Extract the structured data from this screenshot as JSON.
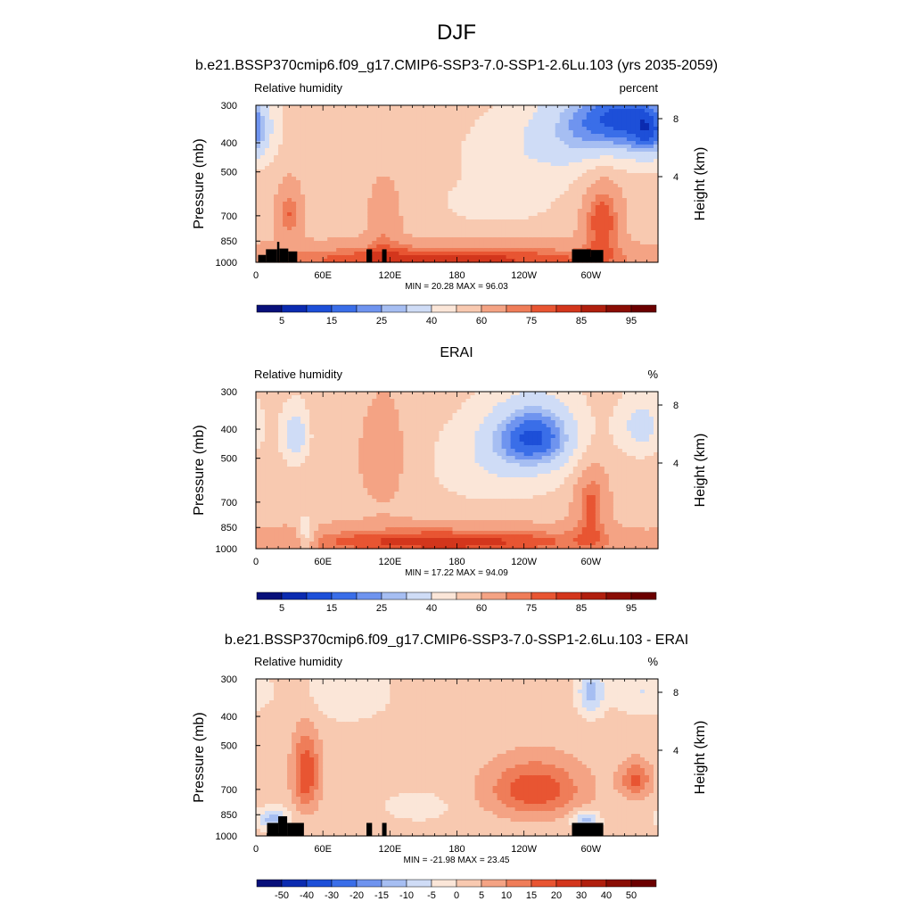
{
  "page": {
    "title": "DJF"
  },
  "chart_data": [
    {
      "type": "heatmap",
      "title": "b.e21.BSSP370cmip6.f09_g17.CMIP6-SSP3-7.0-SSP1-2.6Lu.103 (yrs 2035-2059)",
      "left_label": "Relative humidity",
      "right_label": "percent",
      "ylabel": "Pressure (mb)",
      "y2label": "Height (km)",
      "xticks": [
        "0",
        "60E",
        "120E",
        "180",
        "120W",
        "60W"
      ],
      "yticks": [
        "300",
        "400",
        "500",
        "700",
        "850",
        "1000"
      ],
      "y2ticks": [
        "8",
        "4"
      ],
      "ylim": [
        1000,
        300
      ],
      "xlim": [
        0,
        360
      ],
      "stats": "MIN =  20.28  MAX =  96.03",
      "colorbar": {
        "levels": [
          5,
          10,
          15,
          20,
          25,
          30,
          40,
          50,
          60,
          70,
          75,
          80,
          85,
          90,
          95
        ],
        "labels": [
          "5",
          "15",
          "25",
          "40",
          "60",
          "75",
          "85",
          "95"
        ]
      },
      "colors": [
        "#08107a",
        "#0b2bb0",
        "#1d4fd8",
        "#3a6ee8",
        "#6f94ef",
        "#a6bef2",
        "#cfdcf6",
        "#fbe6d8",
        "#f8c9b0",
        "#f4a384",
        "#ef7d59",
        "#e85532",
        "#d3361c",
        "#b01f0e",
        "#8a0d04",
        "#6b0000"
      ],
      "base_value": 55,
      "blobs": [
        {
          "lon": 330,
          "p": 330,
          "dlon": 38,
          "dp": 110,
          "amp": -30
        },
        {
          "lon": 290,
          "p": 340,
          "dlon": 45,
          "dp": 120,
          "amp": -18
        },
        {
          "lon": 250,
          "p": 430,
          "dlon": 70,
          "dp": 150,
          "amp": -12
        },
        {
          "lon": 215,
          "p": 640,
          "dlon": 45,
          "dp": 95,
          "amp": -12
        },
        {
          "lon": 355,
          "p": 370,
          "dlon": 18,
          "dp": 90,
          "amp": -22
        },
        {
          "lon": 170,
          "p": 980,
          "dlon": 190,
          "dp": 120,
          "amp": 28
        },
        {
          "lon": 30,
          "p": 690,
          "dlon": 12,
          "dp": 160,
          "amp": 20
        },
        {
          "lon": 115,
          "p": 720,
          "dlon": 15,
          "dp": 210,
          "amp": 14
        },
        {
          "lon": 310,
          "p": 720,
          "dlon": 18,
          "dp": 220,
          "amp": 25
        }
      ],
      "topography": [
        {
          "lon0": 2,
          "lon1": 9,
          "p": 945
        },
        {
          "lon0": 9,
          "lon1": 19,
          "p": 905
        },
        {
          "lon0": 19,
          "lon1": 21,
          "p": 855
        },
        {
          "lon0": 21,
          "lon1": 29,
          "p": 900
        },
        {
          "lon0": 29,
          "lon1": 37,
          "p": 920
        },
        {
          "lon0": 99,
          "lon1": 104,
          "p": 905
        },
        {
          "lon0": 113,
          "lon1": 117,
          "p": 905
        },
        {
          "lon0": 283,
          "lon1": 300,
          "p": 905
        },
        {
          "lon0": 300,
          "lon1": 311,
          "p": 910
        }
      ]
    },
    {
      "type": "heatmap",
      "title": "ERAI",
      "left_label": "Relative humidity",
      "right_label": "%",
      "ylabel": "Pressure (mb)",
      "y2label": "Height (km)",
      "xticks": [
        "0",
        "60E",
        "120E",
        "180",
        "120W",
        "60W"
      ],
      "yticks": [
        "300",
        "400",
        "500",
        "700",
        "850",
        "1000"
      ],
      "y2ticks": [
        "8",
        "4"
      ],
      "ylim": [
        1000,
        300
      ],
      "xlim": [
        0,
        360
      ],
      "stats": "MIN =  17.22  MAX =  94.09",
      "colorbar": {
        "levels": [
          5,
          10,
          15,
          20,
          25,
          30,
          40,
          50,
          60,
          70,
          75,
          80,
          85,
          90,
          95
        ],
        "labels": [
          "5",
          "15",
          "25",
          "40",
          "60",
          "75",
          "85",
          "95"
        ]
      },
      "colors": [
        "#08107a",
        "#0b2bb0",
        "#1d4fd8",
        "#3a6ee8",
        "#6f94ef",
        "#a6bef2",
        "#cfdcf6",
        "#fbe6d8",
        "#f8c9b0",
        "#f4a384",
        "#ef7d59",
        "#e85532",
        "#d3361c",
        "#b01f0e",
        "#8a0d04",
        "#6b0000"
      ],
      "base_value": 55,
      "blobs": [
        {
          "lon": 250,
          "p": 420,
          "dlon": 42,
          "dp": 120,
          "amp": -35
        },
        {
          "lon": 215,
          "p": 520,
          "dlon": 65,
          "dp": 180,
          "amp": -12
        },
        {
          "lon": 35,
          "p": 420,
          "dlon": 12,
          "dp": 90,
          "amp": -24
        },
        {
          "lon": 345,
          "p": 390,
          "dlon": 20,
          "dp": 90,
          "amp": -20
        },
        {
          "lon": 170,
          "p": 950,
          "dlon": 170,
          "dp": 115,
          "amp": 28
        },
        {
          "lon": 45,
          "p": 900,
          "dlon": 8,
          "dp": 120,
          "amp": -20
        },
        {
          "lon": 115,
          "p": 500,
          "dlon": 28,
          "dp": 250,
          "amp": 10
        },
        {
          "lon": 300,
          "p": 700,
          "dlon": 16,
          "dp": 220,
          "amp": 22
        }
      ],
      "topography": []
    },
    {
      "type": "heatmap",
      "title": "b.e21.BSSP370cmip6.f09_g17.CMIP6-SSP3-7.0-SSP1-2.6Lu.103 - ERAI",
      "left_label": "Relative humidity",
      "right_label": "%",
      "ylabel": "Pressure (mb)",
      "y2label": "Height (km)",
      "xticks": [
        "0",
        "60E",
        "120E",
        "180",
        "120W",
        "60W"
      ],
      "yticks": [
        "300",
        "400",
        "500",
        "700",
        "850",
        "1000"
      ],
      "y2ticks": [
        "8",
        "4"
      ],
      "ylim": [
        1000,
        300
      ],
      "xlim": [
        0,
        360
      ],
      "stats": "MIN = -21.98  MAX =  23.45",
      "colorbar": {
        "levels": [
          -50,
          -40,
          -30,
          -20,
          -15,
          -10,
          -5,
          0,
          5,
          10,
          15,
          20,
          30,
          40,
          50
        ],
        "labels": [
          "-50",
          "-40",
          "-30",
          "-20",
          "-15",
          "-10",
          "-5",
          "0",
          "5",
          "10",
          "15",
          "20",
          "30",
          "40",
          "50"
        ]
      },
      "colors": [
        "#08107a",
        "#0b2bb0",
        "#1d4fd8",
        "#3a6ee8",
        "#6f94ef",
        "#a6bef2",
        "#cfdcf6",
        "#fbe6d8",
        "#f8c9b0",
        "#f4a384",
        "#ef7d59",
        "#e85532",
        "#d3361c",
        "#b01f0e",
        "#8a0d04",
        "#6b0000"
      ],
      "base_value": 2,
      "blobs": [
        {
          "lon": 45,
          "p": 620,
          "dlon": 12,
          "dp": 180,
          "amp": 18
        },
        {
          "lon": 250,
          "p": 700,
          "dlon": 42,
          "dp": 150,
          "amp": 17
        },
        {
          "lon": 340,
          "p": 650,
          "dlon": 14,
          "dp": 90,
          "amp": 14
        },
        {
          "lon": 15,
          "p": 880,
          "dlon": 14,
          "dp": 70,
          "amp": -14
        },
        {
          "lon": 295,
          "p": 880,
          "dlon": 12,
          "dp": 60,
          "amp": -14
        },
        {
          "lon": 300,
          "p": 330,
          "dlon": 12,
          "dp": 60,
          "amp": -14
        },
        {
          "lon": 345,
          "p": 330,
          "dlon": 25,
          "dp": 60,
          "amp": -7
        },
        {
          "lon": 80,
          "p": 330,
          "dlon": 40,
          "dp": 80,
          "amp": -6
        },
        {
          "lon": 145,
          "p": 800,
          "dlon": 30,
          "dp": 90,
          "amp": -5
        }
      ],
      "topography": [
        {
          "lon0": 10,
          "lon1": 20,
          "p": 905
        },
        {
          "lon0": 20,
          "lon1": 28,
          "p": 860
        },
        {
          "lon0": 28,
          "lon1": 43,
          "p": 905
        },
        {
          "lon0": 99,
          "lon1": 104,
          "p": 905
        },
        {
          "lon0": 113,
          "lon1": 117,
          "p": 905
        },
        {
          "lon0": 283,
          "lon1": 311,
          "p": 905
        }
      ]
    }
  ]
}
